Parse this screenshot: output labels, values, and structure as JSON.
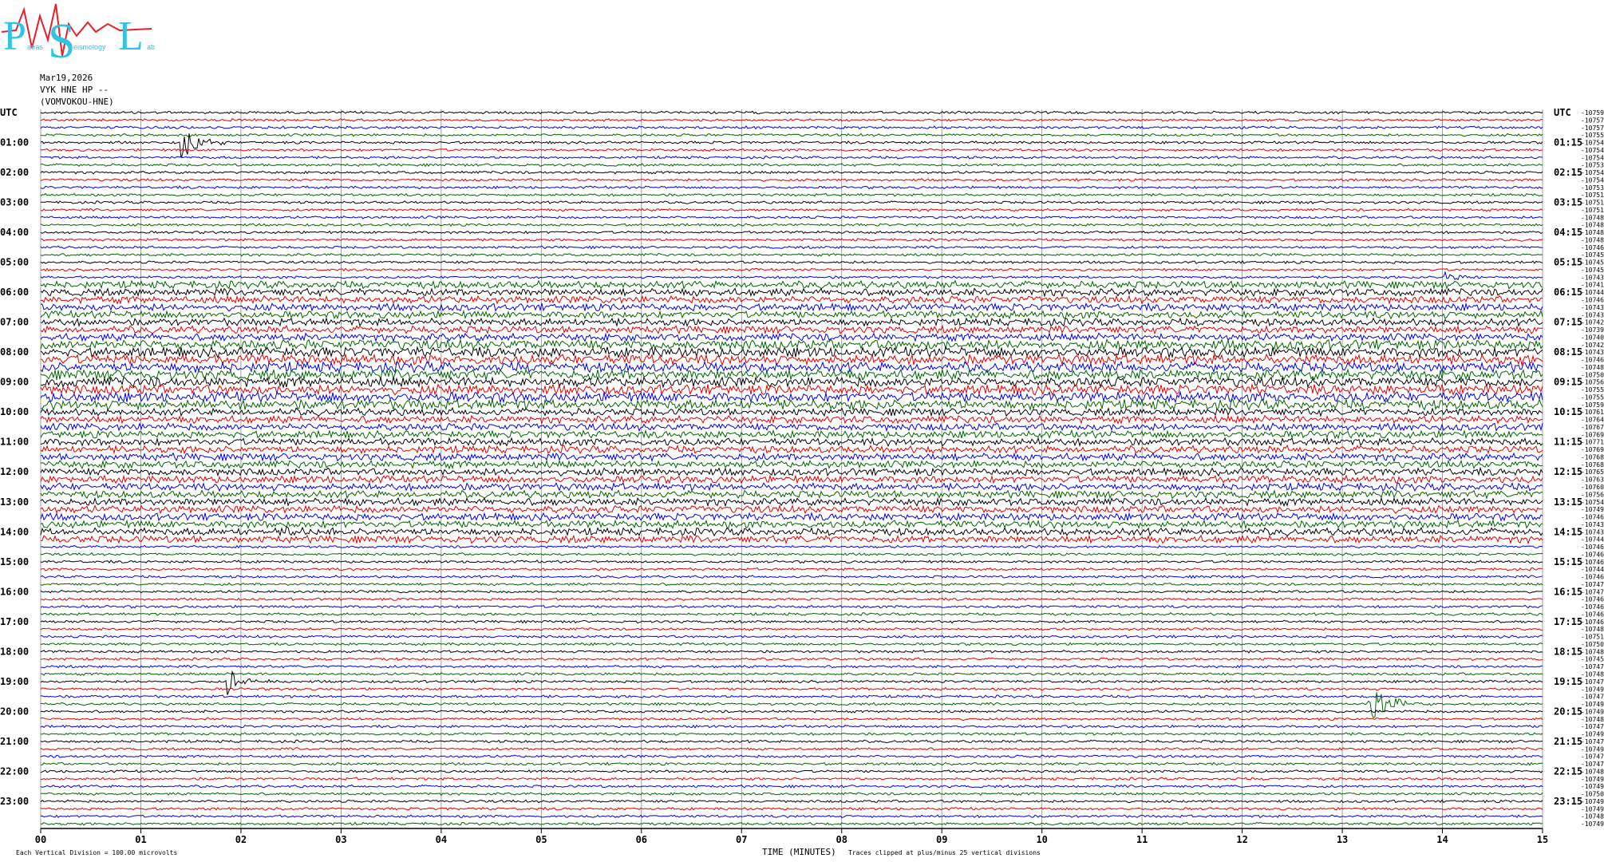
{
  "logo": {
    "letters": [
      "P",
      "S",
      "L"
    ],
    "words": [
      "atras",
      "eismology",
      "ab"
    ]
  },
  "header": {
    "date": "Mar19,2026",
    "channel": "VYK HNE HP --",
    "station": "(VOMVOKOU-HNE)"
  },
  "left_labels": [
    "UTC",
    "01:00",
    "02:00",
    "03:00",
    "04:00",
    "05:00",
    "06:00",
    "07:00",
    "08:00",
    "09:00",
    "10:00",
    "11:00",
    "12:00",
    "13:00",
    "14:00",
    "15:00",
    "16:00",
    "17:00",
    "18:00",
    "19:00",
    "20:00",
    "21:00",
    "22:00",
    "23:00"
  ],
  "right_labels": [
    "UTC",
    "01:15",
    "02:15",
    "03:15",
    "04:15",
    "05:15",
    "06:15",
    "07:15",
    "08:15",
    "09:15",
    "10:15",
    "11:15",
    "12:15",
    "13:15",
    "14:15",
    "15:15",
    "16:15",
    "17:15",
    "18:15",
    "19:15",
    "20:15",
    "21:15",
    "22:15",
    "23:15"
  ],
  "trace_offsets": [
    "-10759",
    "-10757",
    "-10757",
    "-10755",
    "-10754",
    "-10754",
    "-10754",
    "-10753",
    "-10754",
    "-10754",
    "-10753",
    "-10751",
    "-10751",
    "-10751",
    "-10748",
    "-10748",
    "-10748",
    "-10748",
    "-10746",
    "-10745",
    "-10745",
    "-10745",
    "-10743",
    "-10741",
    "-10744",
    "-10746",
    "-10743",
    "-10743",
    "-10742",
    "-10739",
    "-10740",
    "-10742",
    "-10743",
    "-10746",
    "-10748",
    "-10750",
    "-10756",
    "-10755",
    "-10755",
    "-10759",
    "-10761",
    "-10764",
    "-10767",
    "-10769",
    "-10771",
    "-10769",
    "-10768",
    "-10768",
    "-10765",
    "-10763",
    "-10760",
    "-10756",
    "-10754",
    "-10749",
    "-10746",
    "-10743",
    "-10743",
    "-10744",
    "-10746",
    "-10746",
    "-10746",
    "-10744",
    "-10746",
    "-10747",
    "-10747",
    "-10746",
    "-10746",
    "-10746",
    "-10746",
    "-10748",
    "-10751",
    "-10750",
    "-10748",
    "-10745",
    "-10747",
    "-10748",
    "-10747",
    "-10749",
    "-10747",
    "-10749",
    "-10749",
    "-10748",
    "-10747",
    "-10749",
    "-10747",
    "-10749",
    "-10747",
    "-10747",
    "-10748",
    "-10749",
    "-10749",
    "-10750",
    "-10749",
    "-10749",
    "-10748",
    "-10749"
  ],
  "x_axis": {
    "ticks": [
      "00",
      "01",
      "02",
      "03",
      "04",
      "05",
      "06",
      "07",
      "08",
      "09",
      "10",
      "11",
      "12",
      "13",
      "14",
      "15"
    ],
    "title": "TIME (MINUTES)"
  },
  "footer": {
    "scale": "Each Vertical Division =  100.00 microvolts",
    "clip": "Traces clipped at plus/minus 25 vertical divisions"
  }
}
